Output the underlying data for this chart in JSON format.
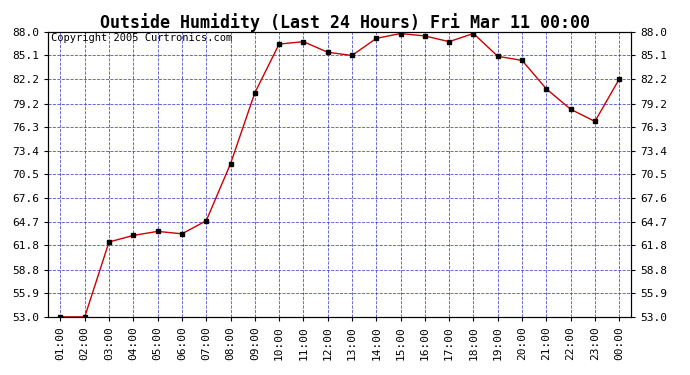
{
  "title": "Outside Humidity (Last 24 Hours) Fri Mar 11 00:00",
  "copyright": "Copyright 2005 Curtronics.com",
  "x_labels": [
    "01:00",
    "02:00",
    "03:00",
    "04:00",
    "05:00",
    "06:00",
    "07:00",
    "08:00",
    "09:00",
    "10:00",
    "11:00",
    "12:00",
    "13:00",
    "14:00",
    "15:00",
    "16:00",
    "17:00",
    "18:00",
    "19:00",
    "20:00",
    "21:00",
    "22:00",
    "23:00",
    "00:00"
  ],
  "y_values": [
    53.0,
    53.0,
    62.2,
    63.0,
    63.5,
    63.2,
    64.8,
    71.8,
    80.5,
    86.5,
    86.8,
    85.5,
    85.1,
    87.2,
    87.8,
    87.5,
    86.8,
    87.8,
    85.0,
    84.5,
    81.0,
    78.5,
    77.0,
    82.2
  ],
  "ylim_min": 53.0,
  "ylim_max": 88.0,
  "yticks": [
    53.0,
    55.9,
    58.8,
    61.8,
    64.7,
    67.6,
    70.5,
    73.4,
    76.3,
    79.2,
    82.2,
    85.1,
    88.0
  ],
  "line_color": "#cc0000",
  "marker_color": "#000000",
  "bg_color": "#ffffff",
  "plot_bg_color": "#ffffff",
  "grid_color": "#3333cc",
  "title_fontsize": 12,
  "tick_fontsize": 8,
  "copyright_fontsize": 7.5
}
